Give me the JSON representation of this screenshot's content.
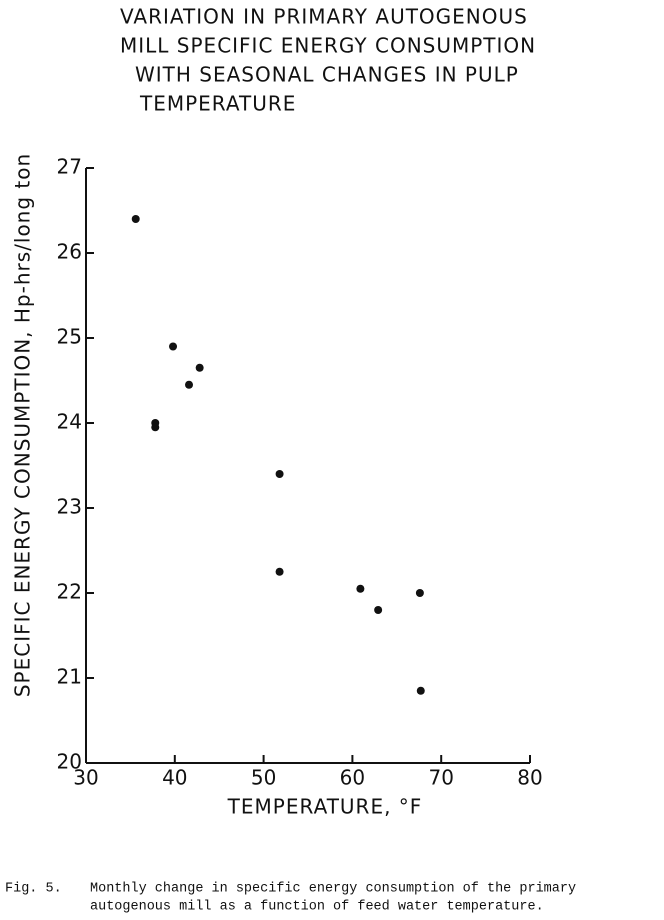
{
  "chart_data": {
    "type": "scatter",
    "title": [
      "VARIATION IN PRIMARY AUTOGENOUS",
      "MILL SPECIFIC ENERGY CONSUMPTION",
      "WITH SEASONAL CHANGES IN PULP",
      "TEMPERATURE"
    ],
    "x_label": "TEMPERATURE, °F",
    "y_label": "SPECIFIC ENERGY CONSUMPTION, Hp-hrs/long ton",
    "x": [
      35.6,
      39.8,
      42.8,
      41.6,
      37.8,
      37.8,
      51.8,
      51.8,
      60.9,
      62.9,
      67.6,
      67.7
    ],
    "values": [
      26.4,
      24.9,
      24.65,
      24.45,
      24.0,
      23.95,
      23.4,
      22.25,
      22.05,
      21.8,
      22.0,
      20.85
    ],
    "color": "#111111",
    "xlim": [
      30,
      80
    ],
    "xticks": [
      30,
      40,
      50,
      60,
      70,
      80
    ],
    "ylim": [
      20,
      27
    ],
    "yticks": [
      20,
      21,
      22,
      23,
      24,
      25,
      26,
      27
    ],
    "grid": false,
    "caption": {
      "label": "Fig. 5.",
      "lines": [
        "Monthly change in specific energy consumption of the primary",
        "autogenous mill as a function of feed water temperature."
      ]
    }
  }
}
